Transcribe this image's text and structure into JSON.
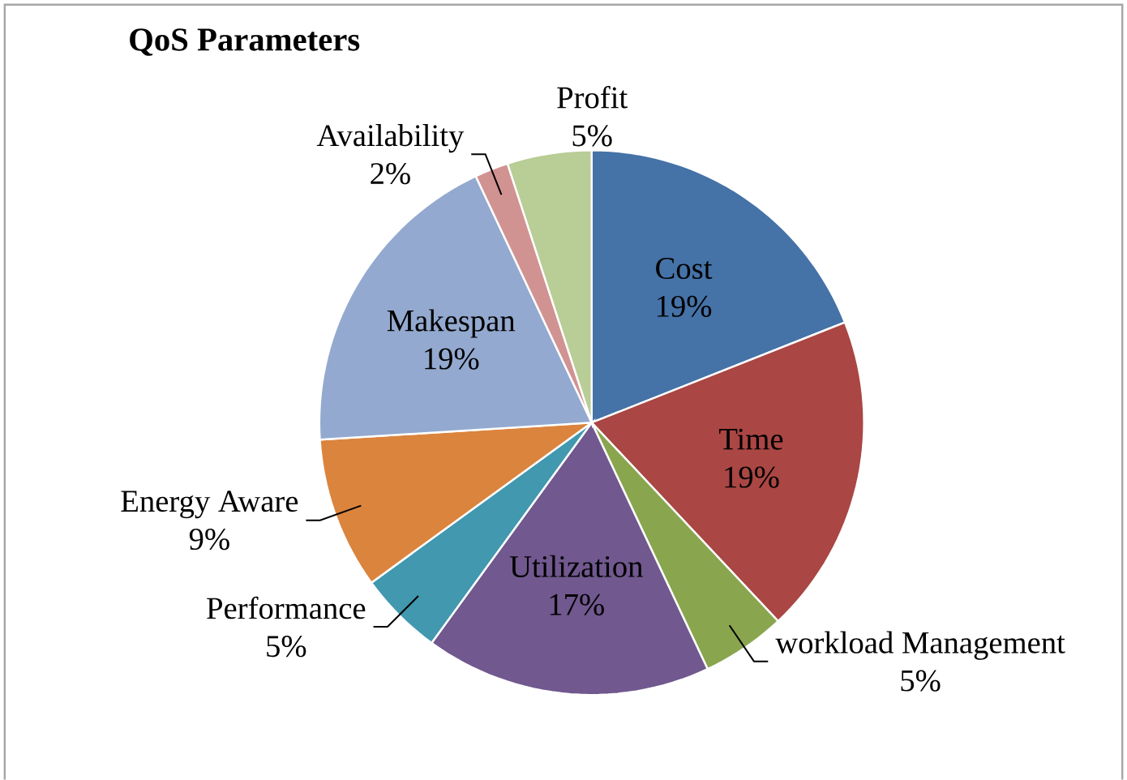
{
  "chart_data": {
    "type": "pie",
    "title": "QoS Parameters",
    "categories": [
      "Cost",
      "Time",
      "workload Management",
      "Utilization",
      "Performance",
      "Energy Aware",
      "Makespan",
      "Availability",
      "Profit"
    ],
    "values": [
      19,
      19,
      5,
      17,
      5,
      9,
      19,
      2,
      5
    ],
    "value_labels": [
      "19%",
      "19%",
      "5%",
      "17%",
      "5%",
      "9%",
      "19%",
      "2%",
      "5%"
    ],
    "colors": [
      "#4572a7",
      "#aa4643",
      "#89a54e",
      "#71588f",
      "#4198af",
      "#db843d",
      "#93a9cf",
      "#d19392",
      "#b9cd96"
    ]
  }
}
